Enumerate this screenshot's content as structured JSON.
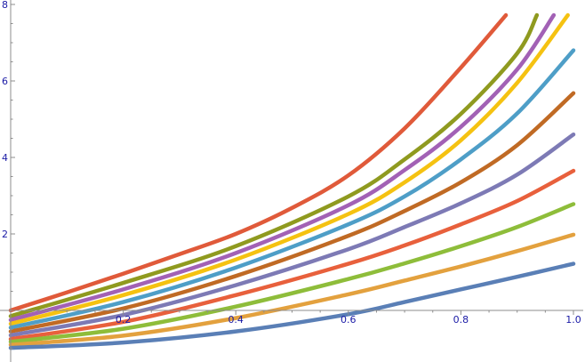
{
  "chart_data": {
    "type": "line",
    "title": "",
    "xlabel": "",
    "ylabel": "",
    "xlim": [
      0,
      1.02
    ],
    "ylim": [
      -1.3,
      8.1
    ],
    "grid": false,
    "legend": "none",
    "x_ticks": [
      0.2,
      0.4,
      0.6,
      0.8,
      1.0
    ],
    "x_tick_labels": [
      "0.2",
      "0.4",
      "0.6",
      "0.8",
      "1.0"
    ],
    "y_ticks": [
      2,
      4,
      6,
      8
    ],
    "y_tick_labels": [
      "2",
      "4",
      "6",
      "8"
    ],
    "series": [
      {
        "color": "#e05a3a",
        "x": [
          0,
          0.1,
          0.2,
          0.3,
          0.4,
          0.5,
          0.6,
          0.7,
          0.8,
          0.88
        ],
        "y": [
          0.0,
          0.47,
          0.96,
          1.47,
          2.0,
          2.68,
          3.53,
          4.76,
          6.35,
          7.72
        ]
      },
      {
        "color": "#8f9a1f",
        "x": [
          0,
          0.2,
          0.4,
          0.6,
          0.7,
          0.8,
          0.9,
          0.935
        ],
        "y": [
          -0.15,
          0.72,
          1.68,
          2.98,
          3.95,
          5.14,
          6.72,
          7.72
        ]
      },
      {
        "color": "#a261b5",
        "x": [
          0,
          0.2,
          0.4,
          0.6,
          0.7,
          0.8,
          0.9,
          0.965
        ],
        "y": [
          -0.25,
          0.55,
          1.5,
          2.75,
          3.67,
          4.8,
          6.3,
          7.72
        ]
      },
      {
        "color": "#f5c211",
        "x": [
          0,
          0.2,
          0.4,
          0.6,
          0.7,
          0.8,
          0.9,
          0.99
        ],
        "y": [
          -0.35,
          0.4,
          1.33,
          2.52,
          3.35,
          4.45,
          5.95,
          7.72
        ]
      },
      {
        "color": "#4e9ec7",
        "x": [
          0,
          0.2,
          0.4,
          0.6,
          0.7,
          0.8,
          0.9,
          1.0
        ],
        "y": [
          -0.45,
          0.22,
          1.12,
          2.25,
          2.98,
          3.95,
          5.15,
          6.8
        ]
      },
      {
        "color": "#c06a24",
        "x": [
          0,
          0.2,
          0.4,
          0.6,
          0.7,
          0.8,
          0.9,
          1.0
        ],
        "y": [
          -0.55,
          0.05,
          0.9,
          1.95,
          2.6,
          3.35,
          4.32,
          5.68
        ]
      },
      {
        "color": "#7d7ab5",
        "x": [
          0,
          0.2,
          0.4,
          0.6,
          0.7,
          0.8,
          0.9,
          1.0
        ],
        "y": [
          -0.65,
          -0.12,
          0.66,
          1.6,
          2.18,
          2.8,
          3.55,
          4.6
        ]
      },
      {
        "color": "#e8603c",
        "x": [
          0,
          0.2,
          0.4,
          0.6,
          0.7,
          0.8,
          0.9,
          1.0
        ],
        "y": [
          -0.75,
          -0.3,
          0.4,
          1.22,
          1.7,
          2.25,
          2.86,
          3.65
        ]
      },
      {
        "color": "#8ebd3a",
        "x": [
          0,
          0.2,
          0.4,
          0.6,
          0.7,
          0.8,
          0.9,
          1.0
        ],
        "y": [
          -0.82,
          -0.48,
          0.1,
          0.82,
          1.23,
          1.68,
          2.18,
          2.78
        ]
      },
      {
        "color": "#e3a13e",
        "x": [
          0,
          0.2,
          0.4,
          0.6,
          0.7,
          0.8,
          0.9,
          1.0
        ],
        "y": [
          -0.9,
          -0.66,
          -0.2,
          0.42,
          0.78,
          1.15,
          1.55,
          1.98
        ]
      },
      {
        "color": "#5a7fb6",
        "x": [
          0,
          0.2,
          0.4,
          0.6,
          0.7,
          0.8,
          0.9,
          1.0
        ],
        "y": [
          -0.98,
          -0.84,
          -0.55,
          -0.1,
          0.22,
          0.55,
          0.88,
          1.22
        ]
      }
    ]
  }
}
